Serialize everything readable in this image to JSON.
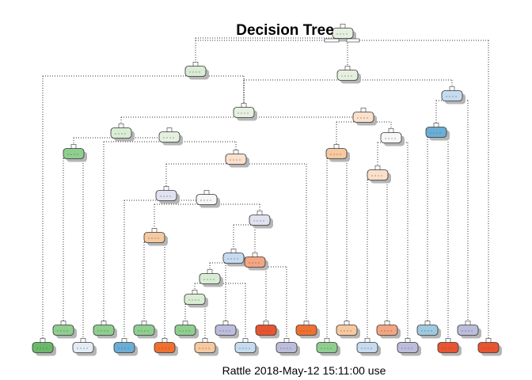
{
  "plot": {
    "title": "Decision Tree",
    "caption": "Rattle 2018-May-12 15:11:00 use"
  },
  "palette": {
    "green": "#8fce8f",
    "light_green": "#d9ecd4",
    "pale_green": "#e6f0e0",
    "dark_green": "#6bb86b",
    "peach": "#f7c9a0",
    "light_peach": "#fbe0cc",
    "salmon": "#f4a582",
    "orange": "#f07030",
    "red_orange": "#e8552f",
    "light_blue": "#c6dbef",
    "pale_blue": "#e4ecf6",
    "blue": "#6aaed6",
    "mid_blue": "#9ecae1",
    "lavender": "#bcbddc",
    "pale_lavender": "#e0e2f0",
    "white": "#f7f7f7",
    "edge": "#333333",
    "shadow": "#b5b5b5"
  }
}
